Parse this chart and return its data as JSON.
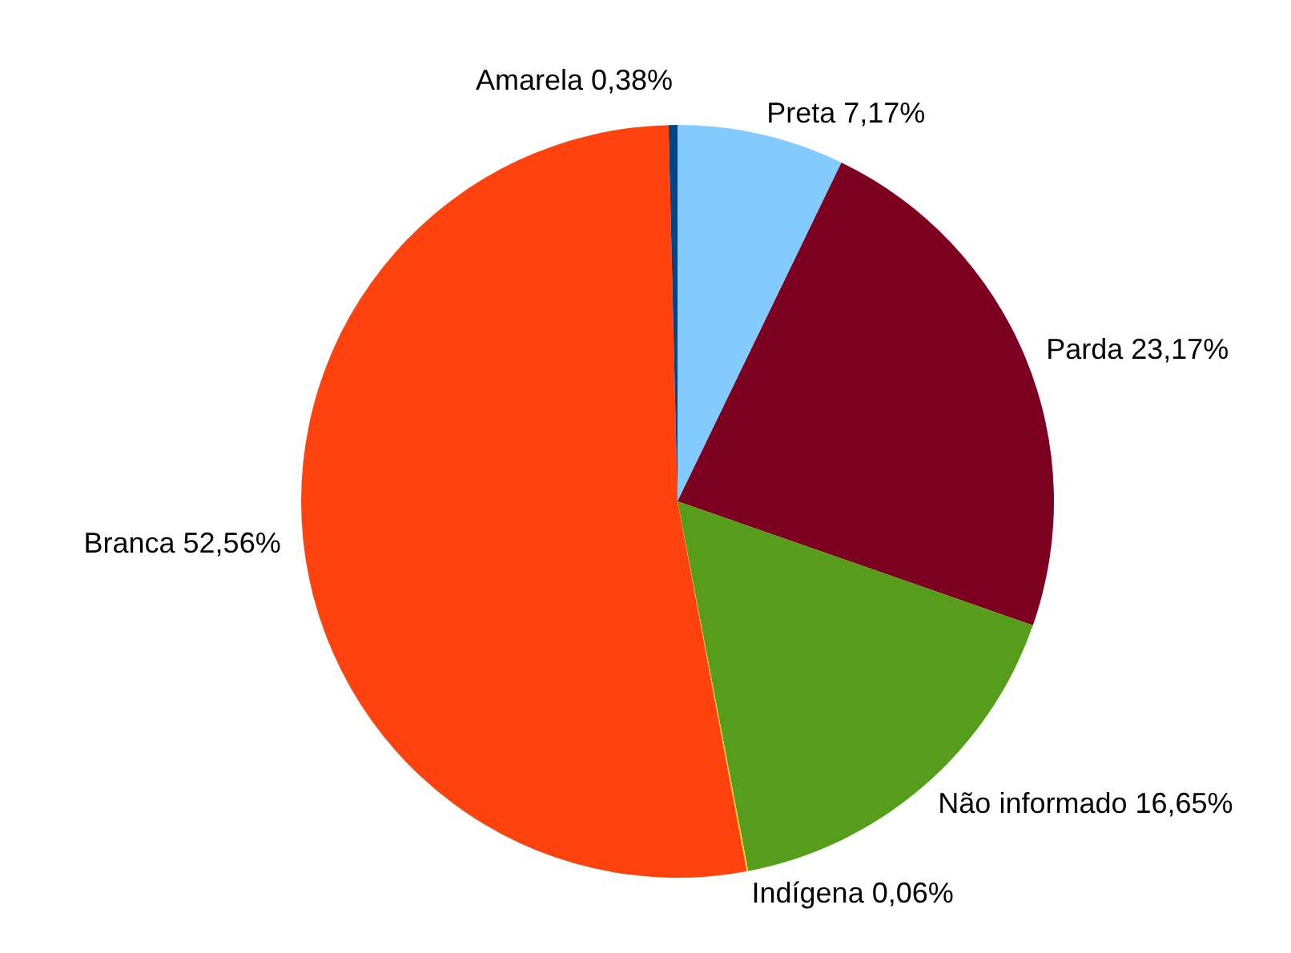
{
  "chart_data": {
    "type": "pie",
    "categories": [
      "Preta",
      "Parda",
      "Não informado",
      "Indígena",
      "Branca",
      "Amarela"
    ],
    "values": [
      7.17,
      23.17,
      16.65,
      0.06,
      52.56,
      0.38
    ],
    "value_labels": [
      "7,17%",
      "23,17%",
      "16,65%",
      "0,06%",
      "52,56%",
      "0,38%"
    ],
    "colors": [
      "#83caff",
      "#7e0021",
      "#579d1c",
      "#ffd320",
      "#ff420e",
      "#004586"
    ],
    "legend": false
  }
}
